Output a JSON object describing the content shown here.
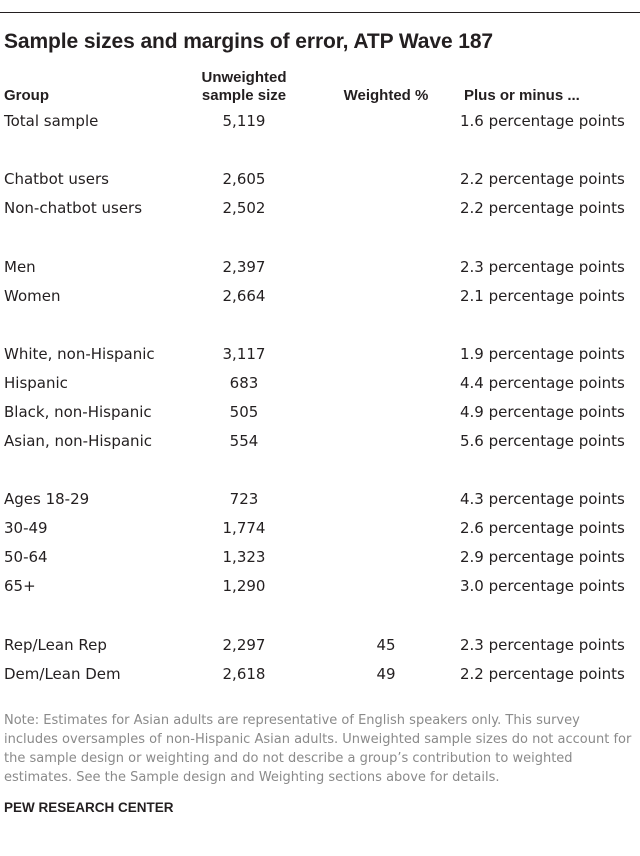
{
  "title": "Sample sizes and margins of error, ATP Wave 187",
  "headers": {
    "group": "Group",
    "unweighted_line1": "Unweighted",
    "unweighted_line2": "sample size",
    "weighted": "Weighted %",
    "margin": "Plus or minus ..."
  },
  "rows": [
    {
      "group": "Total sample",
      "unweighted": "5,119",
      "weighted": "",
      "margin": "1.6 percentage points"
    },
    {
      "group": "Chatbot users",
      "unweighted": "2,605",
      "weighted": "",
      "margin": "2.2 percentage points"
    },
    {
      "group": "Non-chatbot users",
      "unweighted": "2,502",
      "weighted": "",
      "margin": "2.2 percentage points"
    },
    {
      "group": "Men",
      "unweighted": "2,397",
      "weighted": "",
      "margin": "2.3 percentage points"
    },
    {
      "group": "Women",
      "unweighted": "2,664",
      "weighted": "",
      "margin": "2.1 percentage points"
    },
    {
      "group": "White, non-Hispanic",
      "unweighted": "3,117",
      "weighted": "",
      "margin": "1.9 percentage points"
    },
    {
      "group": "Hispanic",
      "unweighted": "683",
      "weighted": "",
      "margin": "4.4 percentage points"
    },
    {
      "group": "Black, non-Hispanic",
      "unweighted": "505",
      "weighted": "",
      "margin": "4.9 percentage points"
    },
    {
      "group": "Asian, non-Hispanic",
      "unweighted": "554",
      "weighted": "",
      "margin": "5.6 percentage points"
    },
    {
      "group": "Ages 18-29",
      "unweighted": "723",
      "weighted": "",
      "margin": "4.3 percentage points"
    },
    {
      "group": "30-49",
      "unweighted": "1,774",
      "weighted": "",
      "margin": "2.6 percentage points"
    },
    {
      "group": "50-64",
      "unweighted": "1,323",
      "weighted": "",
      "margin": "2.9 percentage points"
    },
    {
      "group": "65+",
      "unweighted": "1,290",
      "weighted": "",
      "margin": "3.0 percentage points"
    },
    {
      "group": "Rep/Lean Rep",
      "unweighted": "2,297",
      "weighted": "45",
      "margin": "2.3 percentage points"
    },
    {
      "group": "Dem/Lean Dem",
      "unweighted": "2,618",
      "weighted": "49",
      "margin": "2.2 percentage points"
    }
  ],
  "note": "Note: Estimates for Asian adults are representative of English speakers only. This survey includes oversamples of non-Hispanic Asian adults. Unweighted sample sizes do not account for the sample design or weighting and do not describe a group’s contribution to weighted estimates. See the Sample design and Weighting sections above for details.",
  "source": "PEW RESEARCH CENTER",
  "colors": {
    "text": "#231f20",
    "note": "#8a8a8a",
    "background": "#ffffff"
  }
}
